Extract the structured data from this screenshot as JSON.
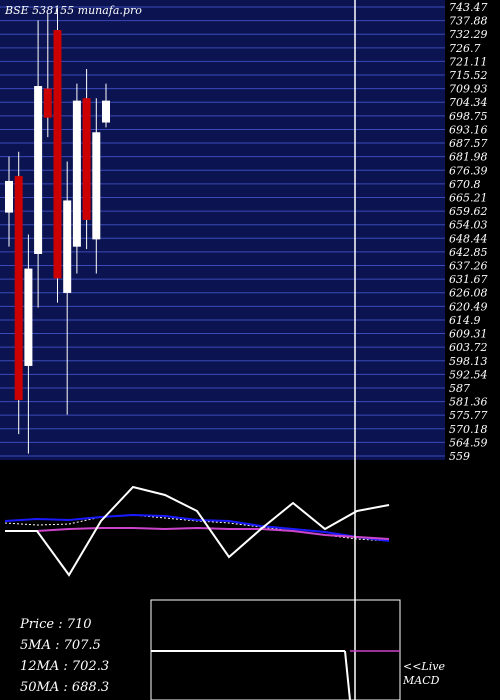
{
  "chart_data": {
    "type": "candlestick",
    "title": "BSE 538155 munafa.pro",
    "y_ticks": [
      "743.47",
      "737.88",
      "732.29",
      "726.7",
      "721.11",
      "715.52",
      "709.93",
      "704.34",
      "698.75",
      "693.16",
      "687.57",
      "681.98",
      "676.39",
      "670.8",
      "665.21",
      "659.62",
      "654.03",
      "648.44",
      "642.85",
      "637.26",
      "631.67",
      "626.08",
      "620.49",
      "614.9",
      "609.31",
      "603.72",
      "598.13",
      "592.54",
      "587",
      "581.36",
      "575.77",
      "570.18",
      "564.59",
      "559"
    ],
    "ylim": [
      559,
      743.47
    ],
    "candles": [
      {
        "open": 672,
        "high": 682,
        "low": 645,
        "close": 659,
        "color": "white"
      },
      {
        "open": 674,
        "high": 684,
        "low": 568,
        "close": 582,
        "color": "red"
      },
      {
        "open": 636,
        "high": 650,
        "low": 560,
        "close": 596,
        "color": "white"
      },
      {
        "open": 642,
        "high": 738,
        "low": 620,
        "close": 711,
        "color": "white"
      },
      {
        "open": 710,
        "high": 741,
        "low": 690,
        "close": 698,
        "color": "red"
      },
      {
        "open": 734,
        "high": 743,
        "low": 622,
        "close": 632,
        "color": "red"
      },
      {
        "open": 626,
        "high": 680,
        "low": 576,
        "close": 664,
        "color": "white"
      },
      {
        "open": 705,
        "high": 712,
        "low": 634,
        "close": 645,
        "color": "white"
      },
      {
        "open": 706,
        "high": 718,
        "low": 644,
        "close": 656,
        "color": "red"
      },
      {
        "open": 692,
        "high": 706,
        "low": 634,
        "close": 648,
        "color": "white"
      },
      {
        "open": 696,
        "high": 712,
        "low": 694,
        "close": 705,
        "color": "white"
      }
    ],
    "indicator": {
      "macd_line": [
        0.2,
        0.2,
        -2.0,
        0.7,
        2.4,
        2.0,
        1.2,
        -1.1,
        0.3,
        1.6,
        0.3,
        1.2,
        1.5
      ],
      "ma_blue": [
        0.7,
        0.8,
        0.75,
        0.9,
        1.0,
        0.95,
        0.75,
        0.7,
        0.45,
        0.3,
        0.15,
        -0.1,
        -0.3
      ],
      "ma_magenta": [
        0.2,
        0.2,
        0.3,
        0.35,
        0.35,
        0.3,
        0.35,
        0.3,
        0.3,
        0.2,
        0.0,
        -0.1,
        -0.2
      ],
      "signal_dotted": [
        0.6,
        0.5,
        0.55,
        0.9,
        1.0,
        0.85,
        0.7,
        0.6,
        0.4,
        0.2,
        0.0,
        -0.2,
        -0.3
      ]
    },
    "macd_box_label": "<<Live MACD"
  },
  "legend": {
    "price": "Price   : 710",
    "ma5": "5MA : 707.5",
    "ma12": "12MA : 702.3",
    "ma50": "50MA : 688.3"
  },
  "colors": {
    "background": "#000000",
    "grid_band": "#0b1450",
    "grid_line": "#3a4ab8",
    "candle_up": "#ffffff",
    "candle_down": "#cc0000",
    "macd": "#ffffff",
    "ma_blue": "#1a1aff",
    "ma_magenta": "#cc44cc"
  }
}
